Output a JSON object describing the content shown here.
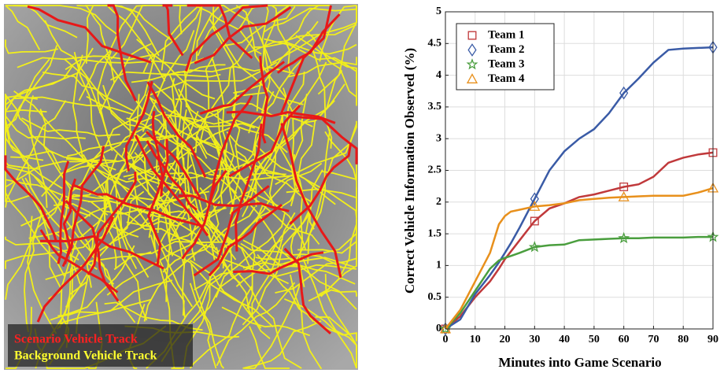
{
  "map": {
    "legend": [
      "Scenario Vehicle Track",
      "Background Vehicle Track"
    ]
  },
  "chart_data": {
    "type": "line",
    "xlabel": "Minutes into Game Scenario",
    "ylabel": "Correct Vehicle Information Observed (%)",
    "x": [
      0,
      5,
      10,
      15,
      18,
      20,
      22,
      25,
      30,
      35,
      40,
      45,
      50,
      55,
      60,
      65,
      70,
      75,
      80,
      85,
      90
    ],
    "series": [
      {
        "name": "Team 1",
        "color": "#c0393b",
        "marker": "square",
        "values": [
          0,
          0.2,
          0.5,
          0.75,
          0.95,
          1.1,
          1.22,
          1.4,
          1.7,
          1.9,
          1.98,
          2.08,
          2.12,
          2.18,
          2.24,
          2.28,
          2.4,
          2.62,
          2.7,
          2.75,
          2.78
        ]
      },
      {
        "name": "Team 2",
        "color": "#3a5ba6",
        "marker": "diamond",
        "values": [
          0,
          0.15,
          0.55,
          0.85,
          1.05,
          1.2,
          1.35,
          1.6,
          2.05,
          2.5,
          2.8,
          3.0,
          3.15,
          3.4,
          3.72,
          3.95,
          4.2,
          4.4,
          4.42,
          4.43,
          4.44
        ]
      },
      {
        "name": "Team 3",
        "color": "#4a9e3e",
        "marker": "star",
        "values": [
          0,
          0.25,
          0.6,
          0.95,
          1.08,
          1.12,
          1.15,
          1.2,
          1.29,
          1.32,
          1.33,
          1.4,
          1.41,
          1.42,
          1.43,
          1.43,
          1.44,
          1.44,
          1.44,
          1.45,
          1.45
        ]
      },
      {
        "name": "Team 4",
        "color": "#e8901c",
        "marker": "triangle",
        "values": [
          0,
          0.3,
          0.75,
          1.2,
          1.65,
          1.78,
          1.85,
          1.88,
          1.93,
          1.95,
          1.98,
          2.03,
          2.05,
          2.07,
          2.08,
          2.09,
          2.1,
          2.1,
          2.1,
          2.15,
          2.22
        ]
      }
    ],
    "markers_x": [
      0,
      30,
      60,
      90
    ],
    "xlim": [
      0,
      90
    ],
    "xticks": [
      0,
      10,
      20,
      30,
      40,
      50,
      60,
      70,
      80,
      90
    ],
    "ylim": [
      0,
      5
    ],
    "yticks": [
      0,
      0.5,
      1,
      1.5,
      2,
      2.5,
      3,
      3.5,
      4,
      4.5,
      5
    ],
    "grid": true,
    "legend_loc": "upper left"
  }
}
